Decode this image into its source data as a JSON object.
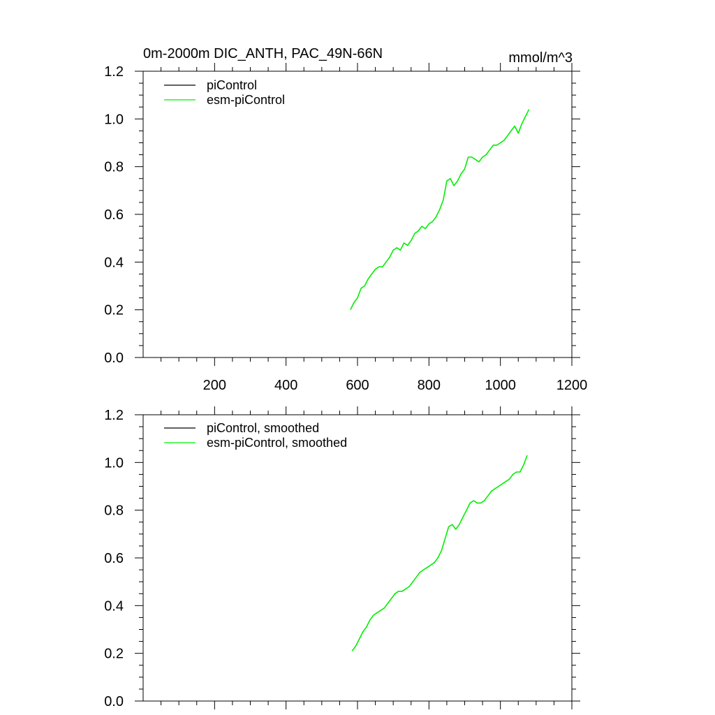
{
  "chart_data": [
    {
      "type": "line",
      "title": "0m-2000m DIC_ANTH, PAC_49N-66N",
      "units": "mmol/m^3",
      "xlim": [
        0,
        1200
      ],
      "ylim": [
        0.0,
        1.2
      ],
      "x_ticks": [
        200,
        400,
        600,
        800,
        1000,
        1200
      ],
      "x_tick_labels": [
        "200",
        "400",
        "600",
        "800",
        "1000",
        "1200"
      ],
      "y_ticks": [
        0.0,
        0.2,
        0.4,
        0.6,
        0.8,
        1.0,
        1.2
      ],
      "y_tick_labels": [
        "0.0",
        "0.2",
        "0.4",
        "0.6",
        "0.8",
        "1.0",
        "1.2"
      ],
      "legend": [
        {
          "label": "piControl",
          "color": "#000000"
        },
        {
          "label": "esm-piControl",
          "color": "#00ee00"
        }
      ],
      "series": [
        {
          "name": "piControl",
          "color": "#000000",
          "x": [],
          "y": []
        },
        {
          "name": "esm-piControl",
          "color": "#00ee00",
          "x": [
            580,
            590,
            600,
            610,
            620,
            630,
            640,
            650,
            660,
            670,
            680,
            690,
            700,
            710,
            720,
            730,
            740,
            750,
            760,
            770,
            780,
            790,
            800,
            810,
            820,
            830,
            840,
            850,
            860,
            870,
            880,
            890,
            900,
            910,
            920,
            930,
            940,
            950,
            960,
            970,
            980,
            990,
            1000,
            1010,
            1020,
            1030,
            1040,
            1050,
            1060,
            1070,
            1080
          ],
          "y": [
            0.2,
            0.23,
            0.25,
            0.29,
            0.3,
            0.33,
            0.35,
            0.37,
            0.38,
            0.38,
            0.4,
            0.42,
            0.45,
            0.46,
            0.45,
            0.48,
            0.47,
            0.49,
            0.52,
            0.53,
            0.55,
            0.54,
            0.56,
            0.57,
            0.59,
            0.62,
            0.66,
            0.74,
            0.75,
            0.72,
            0.74,
            0.77,
            0.79,
            0.84,
            0.84,
            0.83,
            0.82,
            0.84,
            0.85,
            0.87,
            0.89,
            0.89,
            0.9,
            0.91,
            0.93,
            0.95,
            0.97,
            0.94,
            0.98,
            1.01,
            1.04
          ]
        }
      ]
    },
    {
      "type": "line",
      "title": "",
      "xlim": [
        0,
        1200
      ],
      "ylim": [
        0.0,
        1.2
      ],
      "y_ticks": [
        0.0,
        0.2,
        0.4,
        0.6,
        0.8,
        1.0,
        1.2
      ],
      "y_tick_labels": [
        "0.0",
        "0.2",
        "0.4",
        "0.6",
        "0.8",
        "1.0",
        "1.2"
      ],
      "legend": [
        {
          "label": "piControl, smoothed",
          "color": "#000000"
        },
        {
          "label": "esm-piControl, smoothed",
          "color": "#00ee00"
        }
      ],
      "series": [
        {
          "name": "piControl, smoothed",
          "color": "#000000",
          "x": [],
          "y": []
        },
        {
          "name": "esm-piControl, smoothed",
          "color": "#00ee00",
          "x": [
            585,
            595,
            605,
            615,
            625,
            635,
            645,
            655,
            665,
            675,
            685,
            695,
            705,
            715,
            725,
            735,
            745,
            755,
            765,
            775,
            785,
            795,
            805,
            815,
            825,
            835,
            845,
            855,
            865,
            875,
            885,
            895,
            905,
            915,
            925,
            935,
            945,
            955,
            965,
            975,
            985,
            995,
            1005,
            1015,
            1025,
            1035,
            1045,
            1055,
            1065,
            1075
          ],
          "y": [
            0.21,
            0.23,
            0.26,
            0.29,
            0.31,
            0.34,
            0.36,
            0.37,
            0.38,
            0.39,
            0.41,
            0.43,
            0.45,
            0.46,
            0.46,
            0.47,
            0.48,
            0.5,
            0.52,
            0.54,
            0.55,
            0.56,
            0.57,
            0.58,
            0.6,
            0.63,
            0.68,
            0.73,
            0.74,
            0.72,
            0.74,
            0.77,
            0.8,
            0.83,
            0.84,
            0.83,
            0.83,
            0.84,
            0.86,
            0.88,
            0.89,
            0.9,
            0.91,
            0.92,
            0.93,
            0.95,
            0.96,
            0.96,
            0.99,
            1.03
          ]
        }
      ]
    }
  ]
}
